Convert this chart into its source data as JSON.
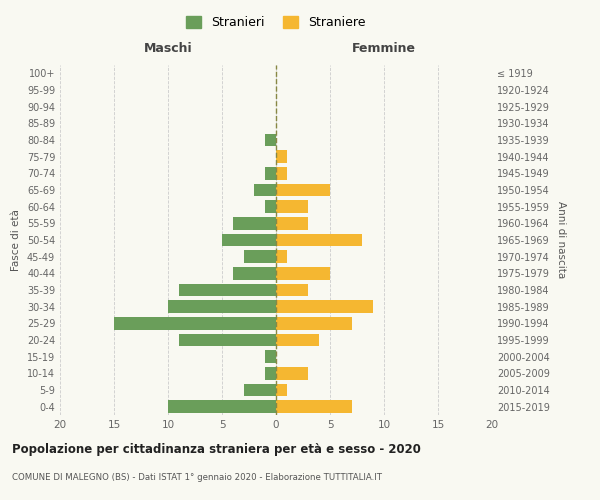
{
  "age_groups": [
    "0-4",
    "5-9",
    "10-14",
    "15-19",
    "20-24",
    "25-29",
    "30-34",
    "35-39",
    "40-44",
    "45-49",
    "50-54",
    "55-59",
    "60-64",
    "65-69",
    "70-74",
    "75-79",
    "80-84",
    "85-89",
    "90-94",
    "95-99",
    "100+"
  ],
  "birth_years": [
    "2015-2019",
    "2010-2014",
    "2005-2009",
    "2000-2004",
    "1995-1999",
    "1990-1994",
    "1985-1989",
    "1980-1984",
    "1975-1979",
    "1970-1974",
    "1965-1969",
    "1960-1964",
    "1955-1959",
    "1950-1954",
    "1945-1949",
    "1940-1944",
    "1935-1939",
    "1930-1934",
    "1925-1929",
    "1920-1924",
    "≤ 1919"
  ],
  "maschi": [
    10,
    3,
    1,
    1,
    9,
    15,
    10,
    9,
    4,
    3,
    5,
    4,
    1,
    2,
    1,
    0,
    1,
    0,
    0,
    0,
    0
  ],
  "femmine": [
    7,
    1,
    3,
    0,
    4,
    7,
    9,
    3,
    5,
    1,
    8,
    3,
    3,
    5,
    1,
    1,
    0,
    0,
    0,
    0,
    0
  ],
  "color_maschi": "#6a9e5a",
  "color_femmine": "#f5b731",
  "title": "Popolazione per cittadinanza straniera per età e sesso - 2020",
  "subtitle": "COMUNE DI MALEGNO (BS) - Dati ISTAT 1° gennaio 2020 - Elaborazione TUTTITALIA.IT",
  "ylabel_left": "Fasce di età",
  "ylabel_right": "Anni di nascita",
  "xlabel_maschi": "Maschi",
  "xlabel_femmine": "Femmine",
  "legend_maschi": "Stranieri",
  "legend_femmine": "Straniere",
  "xlim": 20,
  "background_color": "#f9f9f2",
  "grid_color": "#cccccc"
}
